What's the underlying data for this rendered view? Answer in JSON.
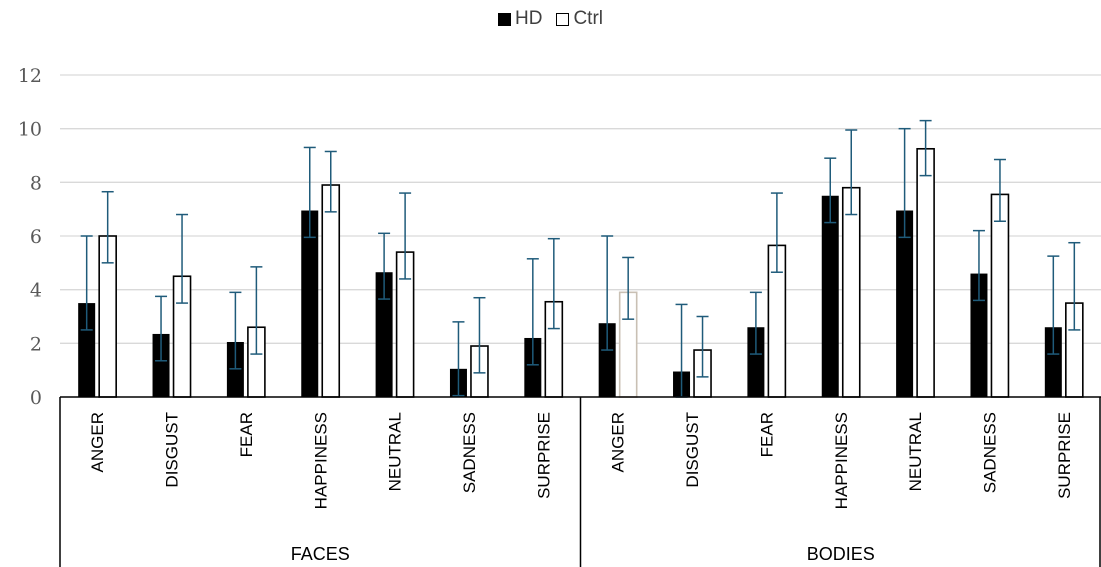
{
  "chart_data": {
    "type": "bar",
    "legend": {
      "position": "top-center"
    },
    "groups": [
      {
        "label": "FACES",
        "categories": [
          "ANGER",
          "DISGUST",
          "FEAR",
          "HAPPINESS",
          "NEUTRAL",
          "SADNESS",
          "SURPRISE"
        ]
      },
      {
        "label": "BODIES",
        "categories": [
          "ANGER",
          "DISGUST",
          "FEAR",
          "HAPPINESS",
          "NEUTRAL",
          "SADNESS",
          "SURPRISE"
        ]
      }
    ],
    "series": [
      {
        "name": "HD",
        "color": "#000000",
        "values": [
          3.5,
          2.35,
          2.05,
          6.95,
          4.65,
          1.05,
          2.2,
          2.75,
          0.95,
          2.6,
          7.5,
          6.95,
          4.6,
          2.6
        ],
        "error_low": [
          2.5,
          1.35,
          1.05,
          5.95,
          3.65,
          0.05,
          1.2,
          1.75,
          0.0,
          1.6,
          6.5,
          5.95,
          3.6,
          1.6
        ],
        "error_high": [
          6.0,
          3.75,
          3.9,
          9.3,
          6.1,
          2.8,
          5.15,
          6.0,
          3.45,
          3.9,
          8.9,
          10.0,
          6.2,
          5.25
        ]
      },
      {
        "name": "Ctrl",
        "color": "#ffffff",
        "values": [
          6.0,
          4.5,
          2.6,
          7.9,
          5.4,
          1.9,
          3.55,
          3.9,
          1.75,
          5.65,
          7.8,
          9.25,
          7.55,
          3.5
        ],
        "error_low": [
          5.0,
          3.5,
          1.6,
          6.9,
          4.4,
          0.9,
          2.55,
          2.9,
          0.75,
          4.65,
          6.8,
          8.25,
          6.55,
          2.5
        ],
        "error_high": [
          7.65,
          6.8,
          4.85,
          9.15,
          7.6,
          3.7,
          5.9,
          5.2,
          3.0,
          7.6,
          9.95,
          10.3,
          8.85,
          5.75
        ]
      }
    ],
    "y_ticks": [
      "0",
      "2",
      "4",
      "6",
      "8",
      "10",
      "12"
    ],
    "ylim": [
      0,
      12
    ],
    "grid": true,
    "error_bar_color": "#1f5b7a"
  }
}
